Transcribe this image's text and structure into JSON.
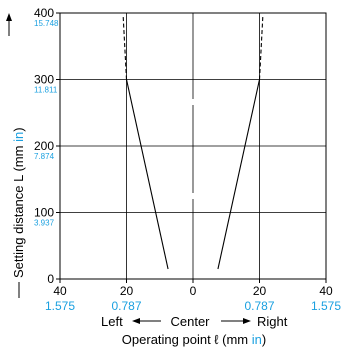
{
  "chart_data": {
    "type": "line",
    "x_ticks_mm": [
      "40",
      "20",
      "0",
      "20",
      "40"
    ],
    "x_ticks_in": [
      "1.575",
      "0.787",
      "0.787",
      "1.575"
    ],
    "y_ticks_mm": [
      "0",
      "100",
      "200",
      "300",
      "400"
    ],
    "y_ticks_in": [
      "3.937",
      "7.874",
      "11.811",
      "15.748"
    ],
    "x_direction": {
      "left": "Left",
      "center": "Center",
      "right": "Right"
    },
    "xlabel": {
      "text": "Operating point ℓ (mm ",
      "unit": "in",
      "close": ")"
    },
    "ylabel": {
      "text": "Setting distance L (mm ",
      "unit": "in",
      "close": ")"
    },
    "xlim": [
      -40,
      40
    ],
    "ylim": [
      0,
      400
    ],
    "grid": true,
    "series": [
      {
        "solid": [
          {
            "x": -20,
            "y": 300
          },
          {
            "x": -7.5,
            "y": 15
          }
        ],
        "dashed": [
          {
            "x": -20,
            "y": 300
          },
          {
            "x": -21,
            "y": 395
          }
        ]
      },
      {
        "solid": [
          {
            "x": 20,
            "y": 300
          },
          {
            "x": 7.5,
            "y": 15
          }
        ],
        "dashed": [
          {
            "x": 20,
            "y": 300
          },
          {
            "x": 21,
            "y": 395
          }
        ]
      }
    ]
  }
}
